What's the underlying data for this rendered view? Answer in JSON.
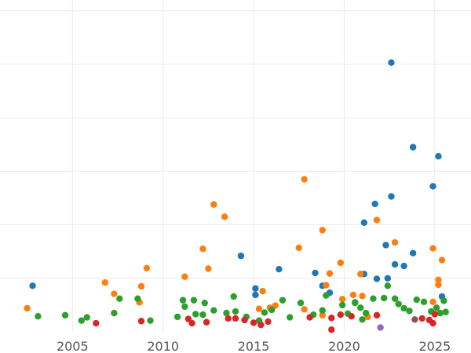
{
  "chart_data": {
    "type": "scatter",
    "title": "",
    "xlabel": "",
    "ylabel": "",
    "grid": true,
    "legend": "none",
    "xlim": [
      2001.0,
      2027.0
    ],
    "ylim": [
      0,
      6.2
    ],
    "x_ticks": [
      2005,
      2010,
      2015,
      2020,
      2025
    ],
    "x_tick_labels": [
      "2005",
      "2010",
      "2015",
      "2020",
      "2025"
    ],
    "y_gridlines": [
      1,
      2,
      3,
      4,
      5,
      6
    ],
    "y_tick_labels": [],
    "series": [
      {
        "color": "#1f77b4",
        "points": [
          [
            2002.8,
            0.86
          ],
          [
            2014.3,
            1.42
          ],
          [
            2015.1,
            0.81
          ],
          [
            2015.1,
            0.69
          ],
          [
            2016.4,
            1.17
          ],
          [
            2018.4,
            1.1
          ],
          [
            2018.8,
            0.86
          ],
          [
            2019.2,
            0.73
          ],
          [
            2020.6,
            0.55
          ],
          [
            2021.1,
            2.04
          ],
          [
            2021.1,
            1.08
          ],
          [
            2021.7,
            2.39
          ],
          [
            2021.8,
            0.99
          ],
          [
            2022.3,
            1.62
          ],
          [
            2022.4,
            1.0
          ],
          [
            2022.6,
            2.53
          ],
          [
            2022.6,
            5.03
          ],
          [
            2022.8,
            1.26
          ],
          [
            2023.3,
            1.23
          ],
          [
            2023.8,
            1.47
          ],
          [
            2023.8,
            3.45
          ],
          [
            2024.9,
            2.72
          ],
          [
            2025.2,
            3.28
          ],
          [
            2025.4,
            0.66
          ]
        ]
      },
      {
        "color": "#ff7f0e",
        "points": [
          [
            2002.5,
            0.44
          ],
          [
            2006.8,
            0.92
          ],
          [
            2007.3,
            0.71
          ],
          [
            2008.7,
            0.55
          ],
          [
            2008.8,
            0.85
          ],
          [
            2009.1,
            1.19
          ],
          [
            2011.2,
            1.03
          ],
          [
            2012.2,
            1.55
          ],
          [
            2012.5,
            1.18
          ],
          [
            2012.8,
            2.38
          ],
          [
            2013.4,
            2.15
          ],
          [
            2015.3,
            0.43
          ],
          [
            2015.5,
            0.76
          ],
          [
            2015.9,
            0.45
          ],
          [
            2016.2,
            0.49
          ],
          [
            2017.5,
            1.57
          ],
          [
            2017.8,
            2.85
          ],
          [
            2017.8,
            0.42
          ],
          [
            2018.8,
            1.9
          ],
          [
            2018.8,
            0.31
          ],
          [
            2019.0,
            0.87
          ],
          [
            2019.2,
            1.09
          ],
          [
            2019.8,
            1.29
          ],
          [
            2019.9,
            0.61
          ],
          [
            2020.5,
            0.69
          ],
          [
            2020.9,
            1.08
          ],
          [
            2021.0,
            0.67
          ],
          [
            2021.3,
            0.28
          ],
          [
            2021.8,
            2.09
          ],
          [
            2022.8,
            1.67
          ],
          [
            2024.9,
            1.56
          ],
          [
            2024.9,
            0.56
          ],
          [
            2025.2,
            0.97
          ],
          [
            2025.4,
            1.34
          ],
          [
            2025.2,
            0.88
          ]
        ]
      },
      {
        "color": "#2ca02c",
        "points": [
          [
            2003.1,
            0.29
          ],
          [
            2004.6,
            0.31
          ],
          [
            2005.5,
            0.21
          ],
          [
            2005.8,
            0.27
          ],
          [
            2007.3,
            0.35
          ],
          [
            2007.6,
            0.62
          ],
          [
            2008.6,
            0.62
          ],
          [
            2009.3,
            0.21
          ],
          [
            2010.8,
            0.28
          ],
          [
            2011.1,
            0.59
          ],
          [
            2011.2,
            0.47
          ],
          [
            2011.7,
            0.59
          ],
          [
            2011.8,
            0.33
          ],
          [
            2012.2,
            0.32
          ],
          [
            2012.3,
            0.54
          ],
          [
            2012.8,
            0.4
          ],
          [
            2013.5,
            0.35
          ],
          [
            2013.9,
            0.66
          ],
          [
            2014.0,
            0.38
          ],
          [
            2014.6,
            0.28
          ],
          [
            2015.3,
            0.21
          ],
          [
            2015.6,
            0.36
          ],
          [
            2016.0,
            0.41
          ],
          [
            2016.6,
            0.59
          ],
          [
            2017.0,
            0.27
          ],
          [
            2017.6,
            0.54
          ],
          [
            2018.3,
            0.32
          ],
          [
            2018.8,
            0.4
          ],
          [
            2019.0,
            0.68
          ],
          [
            2019.9,
            0.5
          ],
          [
            2020.2,
            0.34
          ],
          [
            2020.6,
            0.54
          ],
          [
            2020.9,
            0.45
          ],
          [
            2021.0,
            0.23
          ],
          [
            2021.2,
            0.35
          ],
          [
            2021.6,
            0.62
          ],
          [
            2022.2,
            0.63
          ],
          [
            2022.4,
            0.86
          ],
          [
            2022.8,
            0.62
          ],
          [
            2023.0,
            0.52
          ],
          [
            2023.3,
            0.44
          ],
          [
            2023.6,
            0.39
          ],
          [
            2024.0,
            0.6
          ],
          [
            2024.4,
            0.56
          ],
          [
            2024.8,
            0.38
          ],
          [
            2025.1,
            0.45
          ],
          [
            2025.3,
            0.35
          ],
          [
            2025.6,
            0.37
          ],
          [
            2025.5,
            0.58
          ]
        ]
      },
      {
        "color": "#d62728",
        "points": [
          [
            2006.3,
            0.16
          ],
          [
            2008.8,
            0.2
          ],
          [
            2011.4,
            0.24
          ],
          [
            2011.6,
            0.16
          ],
          [
            2012.4,
            0.18
          ],
          [
            2013.6,
            0.25
          ],
          [
            2014.0,
            0.25
          ],
          [
            2014.5,
            0.22
          ],
          [
            2015.0,
            0.17
          ],
          [
            2015.4,
            0.13
          ],
          [
            2015.8,
            0.19
          ],
          [
            2018.1,
            0.27
          ],
          [
            2019.3,
            0.26
          ],
          [
            2019.3,
            0.04
          ],
          [
            2019.8,
            0.32
          ],
          [
            2020.4,
            0.29
          ],
          [
            2021.8,
            0.31
          ],
          [
            2024.3,
            0.25
          ],
          [
            2024.7,
            0.22
          ],
          [
            2024.9,
            0.16
          ],
          [
            2025.0,
            0.33
          ]
        ]
      },
      {
        "color": "#8c564b",
        "points": [
          [
            2023.9,
            0.23
          ]
        ]
      },
      {
        "color": "#9467bd",
        "points": [
          [
            2022.0,
            0.08
          ]
        ]
      }
    ]
  }
}
